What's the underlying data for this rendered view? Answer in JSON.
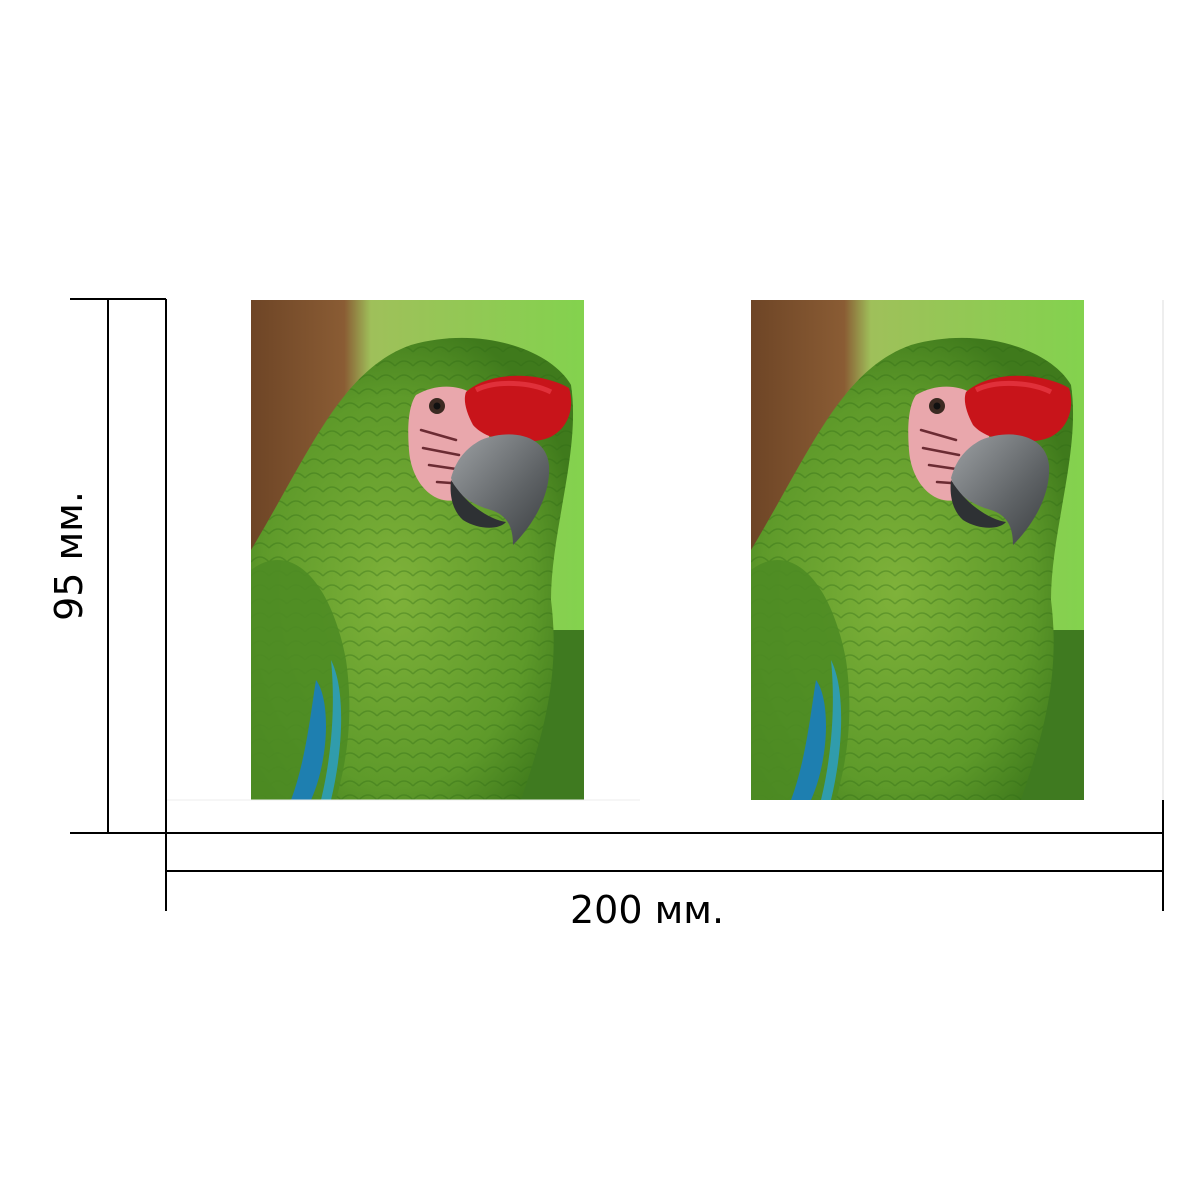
{
  "dimensions": {
    "height_label": "95 мм.",
    "width_label": "200 мм."
  },
  "photos": {
    "count": 2,
    "subject": "parrot-photo"
  },
  "colors": {
    "line": "#000000",
    "feathers_green": "#5f9f2a",
    "background_green": "#7ecb4a",
    "forehead_red": "#c8141a",
    "face_pink": "#e9a7ac",
    "beak_grey": "#6b6f72",
    "wing_blue": "#1e7fb0",
    "background_brown": "#7a4f2c"
  }
}
